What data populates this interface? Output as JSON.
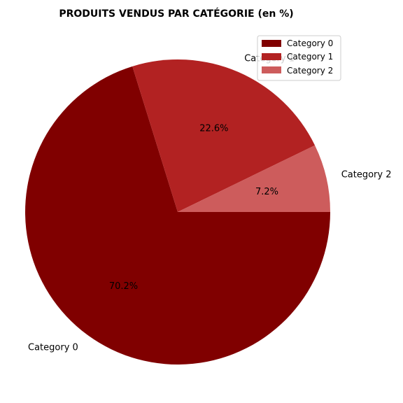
{
  "chart_data": {
    "type": "pie",
    "title": "PRODUITS VENDUS PAR CATÉGORIE (en %)",
    "categories": [
      "Category 0",
      "Category 1",
      "Category 2"
    ],
    "values": [
      70.2,
      22.6,
      7.2
    ],
    "value_labels": [
      "70.2%",
      "22.6%",
      "7.2%"
    ],
    "colors": [
      "#800000",
      "#b22222",
      "#cd5c5c"
    ],
    "start_angle_deg": 0,
    "direction": "clockwise",
    "legend": {
      "placement": "top-right",
      "entries": [
        "Category 0",
        "Category 1",
        "Category 2"
      ]
    }
  }
}
